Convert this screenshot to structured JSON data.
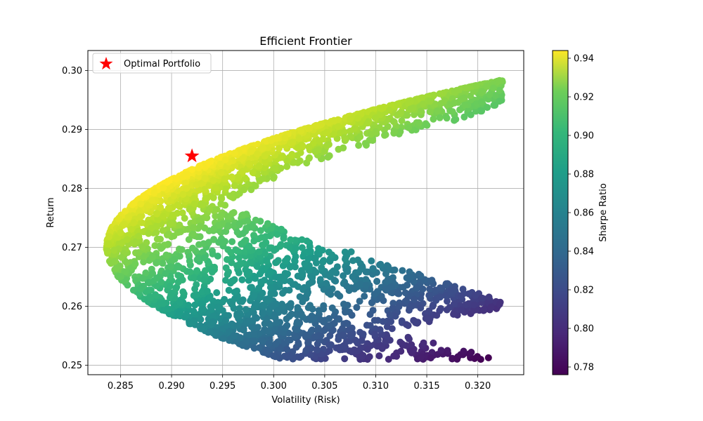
{
  "chart_data": {
    "type": "scatter",
    "title": "Efficient Frontier",
    "xlabel": "Volatility (Risk)",
    "ylabel": "Return",
    "xlim": [
      0.2818,
      0.3245
    ],
    "ylim": [
      0.2484,
      0.3034
    ],
    "xticks": [
      "0.285",
      "0.290",
      "0.295",
      "0.300",
      "0.305",
      "0.310",
      "0.315",
      "0.320"
    ],
    "xtick_values": [
      0.285,
      0.29,
      0.295,
      0.3,
      0.305,
      0.31,
      0.315,
      0.32
    ],
    "yticks": [
      "0.25",
      "0.26",
      "0.27",
      "0.28",
      "0.29",
      "0.30"
    ],
    "ytick_values": [
      0.25,
      0.26,
      0.27,
      0.28,
      0.29,
      0.3
    ],
    "grid": true,
    "colormap": "viridis",
    "colorbar": {
      "label": "Sharpe Ratio",
      "range": [
        0.776,
        0.944
      ],
      "ticks": [
        "0.78",
        "0.80",
        "0.82",
        "0.84",
        "0.86",
        "0.88",
        "0.90",
        "0.92",
        "0.94"
      ],
      "tick_values": [
        0.78,
        0.8,
        0.82,
        0.84,
        0.86,
        0.88,
        0.9,
        0.92,
        0.94
      ]
    },
    "frontier": {
      "min_volatility_point": {
        "volatility": 0.2836,
        "return": 0.27
      },
      "upper_end": {
        "volatility": 0.3162,
        "return": 0.2992
      },
      "lower_end": {
        "volatility": 0.3045,
        "return": 0.251
      },
      "upper_right_cluster_end": {
        "volatility": 0.3222,
        "return": 0.26
      }
    },
    "optimal_portfolio": {
      "label": "Optimal Portfolio",
      "volatility": 0.292,
      "return": 0.2855,
      "color": "#ff0000",
      "marker": "star"
    },
    "legend": {
      "placement": "top-left",
      "entries": [
        "Optimal Portfolio"
      ]
    }
  }
}
